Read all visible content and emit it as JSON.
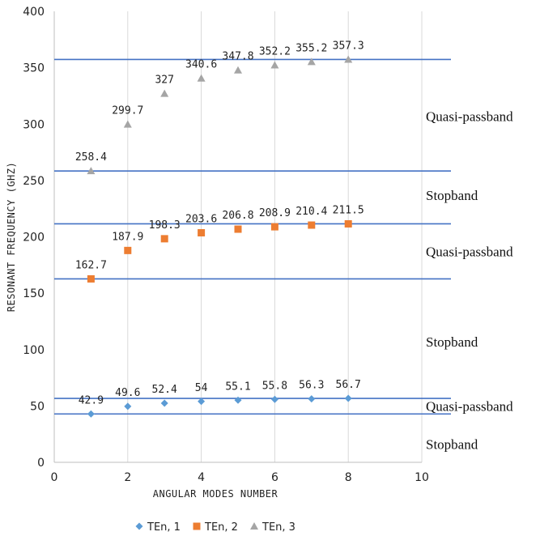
{
  "chart_data": {
    "type": "scatter",
    "title": "",
    "xlabel": "ANGULAR MODES NUMBER",
    "ylabel": "RESONANT FREQUENCY (GHZ)",
    "xlim": [
      0,
      10
    ],
    "ylim": [
      0,
      400
    ],
    "x_ticks": [
      "0",
      "2",
      "4",
      "6",
      "8",
      "10"
    ],
    "y_ticks": [
      "0",
      "50",
      "100",
      "150",
      "200",
      "250",
      "300",
      "350",
      "400"
    ],
    "grid": "vertical",
    "legend_position": "bottom",
    "x": [
      1,
      2,
      3,
      4,
      5,
      6,
      7,
      8
    ],
    "series": [
      {
        "name": "TEn, 1",
        "marker": "diamond",
        "color": "#5b9bd5",
        "values": [
          42.9,
          49.6,
          52.4,
          54,
          55.1,
          55.8,
          56.3,
          56.7
        ],
        "labels": [
          "42.9",
          "49.6",
          "52.4",
          "54",
          "55.1",
          "55.8",
          "56.3",
          "56.7"
        ]
      },
      {
        "name": "TEn, 2",
        "marker": "square",
        "color": "#ed7d31",
        "values": [
          162.7,
          187.9,
          198.3,
          203.6,
          206.8,
          208.9,
          210.4,
          211.5
        ],
        "labels": [
          "162.7",
          "187.9",
          "198.3",
          "203.6",
          "206.8",
          "208.9",
          "210.4",
          "211.5"
        ]
      },
      {
        "name": "TEn, 3",
        "marker": "triangle",
        "color": "#a5a5a5",
        "values": [
          258.4,
          299.7,
          327,
          340.6,
          347.8,
          352.2,
          355.2,
          357.3
        ],
        "labels": [
          "258.4",
          "299.7",
          "327",
          "340.6",
          "347.8",
          "352.2",
          "355.2",
          "357.3"
        ]
      }
    ],
    "reference_lines": {
      "color": "#4472c4",
      "y_values": [
        42.9,
        56.7,
        162.7,
        211.5,
        258.4,
        357.3
      ]
    },
    "annotations": [
      {
        "text": "Quasi-passband",
        "y": 307
      },
      {
        "text": "Stopband",
        "y": 237
      },
      {
        "text": "Quasi-passband",
        "y": 187
      },
      {
        "text": "Stopband",
        "y": 107
      },
      {
        "text": "Quasi-passband",
        "y": 50
      },
      {
        "text": "Stopband",
        "y": 16
      }
    ]
  }
}
